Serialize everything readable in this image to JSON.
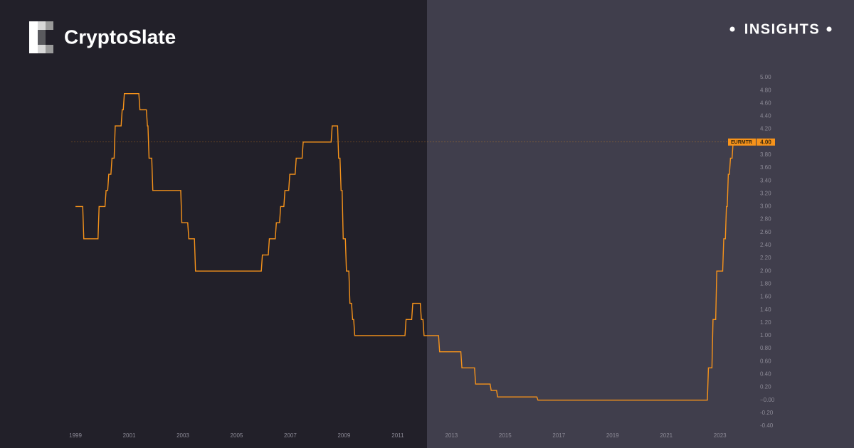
{
  "brand": {
    "name": "CryptoSlate",
    "badge": "INSIGHTS"
  },
  "chart_data": {
    "type": "line",
    "x": [
      1999.0,
      1999.27,
      1999.31,
      1999.84,
      1999.88,
      2000.1,
      2000.14,
      2000.2,
      2000.24,
      2000.32,
      2000.36,
      2000.44,
      2000.48,
      2000.7,
      2000.74,
      2000.78,
      2000.82,
      2001.36,
      2001.4,
      2001.64,
      2001.68,
      2001.7,
      2001.74,
      2001.84,
      2001.88,
      2002.92,
      2002.96,
      2003.18,
      2003.22,
      2003.43,
      2003.47,
      2005.92,
      2005.96,
      2006.18,
      2006.22,
      2006.44,
      2006.48,
      2006.6,
      2006.64,
      2006.76,
      2006.8,
      2006.94,
      2006.98,
      2007.18,
      2007.22,
      2007.44,
      2007.48,
      2008.52,
      2008.56,
      2008.76,
      2008.8,
      2008.85,
      2008.89,
      2008.93,
      2008.97,
      2009.05,
      2009.09,
      2009.18,
      2009.22,
      2009.28,
      2009.32,
      2009.36,
      2009.4,
      2011.27,
      2011.31,
      2011.52,
      2011.56,
      2011.84,
      2011.88,
      2011.94,
      2011.98,
      2012.52,
      2012.56,
      2013.35,
      2013.39,
      2013.86,
      2013.9,
      2014.44,
      2014.48,
      2014.68,
      2014.72,
      2016.18,
      2016.22,
      2022.53,
      2022.57,
      2022.7,
      2022.74,
      2022.84,
      2022.88,
      2023.1,
      2023.14,
      2023.2,
      2023.24,
      2023.27,
      2023.31,
      2023.35,
      2023.39,
      2023.45,
      2023.49,
      2023.55
    ],
    "series": [
      {
        "name": "EURMTR",
        "color": "#f7931a",
        "values": [
          3,
          3,
          2.5,
          2.5,
          3,
          3,
          3.25,
          3.25,
          3.5,
          3.5,
          3.75,
          3.75,
          4.25,
          4.25,
          4.5,
          4.5,
          4.75,
          4.75,
          4.5,
          4.5,
          4.25,
          4.25,
          3.75,
          3.75,
          3.25,
          3.25,
          2.75,
          2.75,
          2.5,
          2.5,
          2,
          2,
          2.25,
          2.25,
          2.5,
          2.5,
          2.75,
          2.75,
          3,
          3,
          3.25,
          3.25,
          3.5,
          3.5,
          3.75,
          3.75,
          4,
          4,
          4.25,
          4.25,
          3.75,
          3.75,
          3.25,
          3.25,
          2.5,
          2.5,
          2,
          2,
          1.5,
          1.5,
          1.25,
          1.25,
          1,
          1,
          1.25,
          1.25,
          1.5,
          1.5,
          1.25,
          1.25,
          1,
          1,
          0.75,
          0.75,
          0.5,
          0.5,
          0.25,
          0.25,
          0.15,
          0.15,
          0.05,
          0.05,
          0,
          0,
          0.5,
          0.5,
          1.25,
          1.25,
          2,
          2,
          2.5,
          2.5,
          3,
          3,
          3.5,
          3.5,
          3.75,
          3.75,
          4,
          4
        ]
      }
    ],
    "current_value": {
      "value": 4,
      "label": "4.00"
    },
    "xlim": [
      1998.84,
      2024.28
    ],
    "xticks": [
      1999,
      2001,
      2003,
      2005,
      2007,
      2009,
      2011,
      2013,
      2015,
      2017,
      2019,
      2021,
      2023
    ],
    "ylim": [
      -0.4,
      5
    ],
    "yticks": [
      {
        "value": -0.4,
        "label": "-0.40"
      },
      {
        "value": -0.2,
        "label": "-0.20"
      },
      {
        "value": 0,
        "label": "−0.00"
      },
      {
        "value": 0.2,
        "label": "0.20"
      },
      {
        "value": 0.4,
        "label": "0.40"
      },
      {
        "value": 0.6,
        "label": "0.60"
      },
      {
        "value": 0.8,
        "label": "0.80"
      },
      {
        "value": 1,
        "label": "1.00"
      },
      {
        "value": 1.2,
        "label": "1.20"
      },
      {
        "value": 1.4,
        "label": "1.40"
      },
      {
        "value": 1.6,
        "label": "1.60"
      },
      {
        "value": 1.8,
        "label": "1.80"
      },
      {
        "value": 2,
        "label": "2.00"
      },
      {
        "value": 2.2,
        "label": "2.20"
      },
      {
        "value": 2.4,
        "label": "2.40"
      },
      {
        "value": 2.6,
        "label": "2.60"
      },
      {
        "value": 2.8,
        "label": "2.80"
      },
      {
        "value": 3,
        "label": "3.00"
      },
      {
        "value": 3.2,
        "label": "3.20"
      },
      {
        "value": 3.4,
        "label": "3.40"
      },
      {
        "value": 3.6,
        "label": "3.60"
      },
      {
        "value": 3.8,
        "label": "3.80"
      },
      {
        "value": 4,
        "label": "4.00"
      },
      {
        "value": 4.2,
        "label": "4.20"
      },
      {
        "value": 4.4,
        "label": "4.40"
      },
      {
        "value": 4.6,
        "label": "4.60"
      },
      {
        "value": 4.8,
        "label": "4.80"
      },
      {
        "value": 5,
        "label": "5.00"
      }
    ],
    "grid": false
  }
}
